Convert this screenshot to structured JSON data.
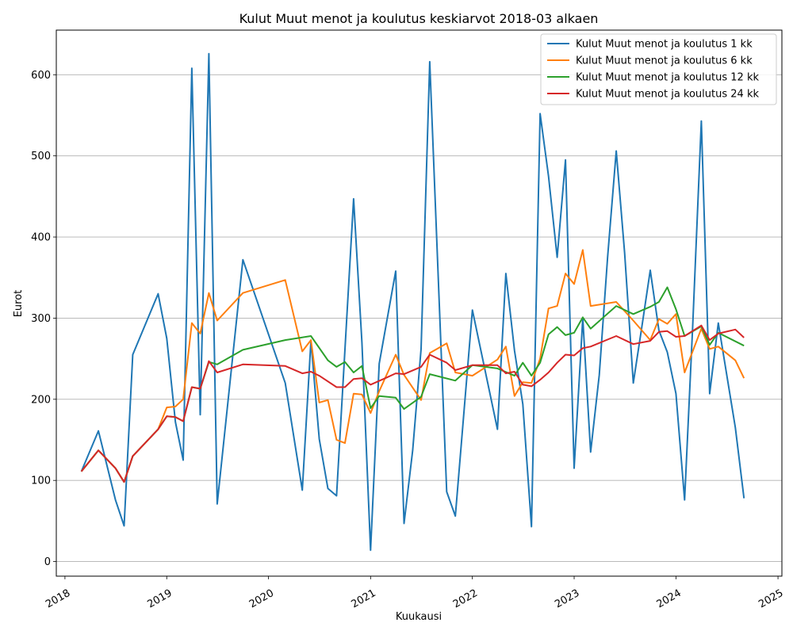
{
  "chart_data": {
    "type": "line",
    "title": "Kulut Muut menot ja koulutus keskiarvot 2018-03 alkaen",
    "xlabel": "Kuukausi",
    "ylabel": "Eurot",
    "xlim": [
      "2017-12-01",
      "2025-01-15"
    ],
    "ylim": [
      -18,
      655
    ],
    "x_ticks": [
      "2018",
      "2019",
      "2020",
      "2021",
      "2022",
      "2023",
      "2024",
      "2025"
    ],
    "y_ticks": [
      0,
      100,
      200,
      300,
      400,
      500,
      600
    ],
    "grid": "horizontal",
    "legend_position": "top-right",
    "colors": [
      "#1f77b4",
      "#ff7f0e",
      "#2ca02c",
      "#d62728"
    ],
    "series": [
      {
        "name": "Kulut Muut menot ja koulutus 1 kk",
        "points": [
          [
            "2018-03-01",
            111
          ],
          [
            "2018-05-01",
            161
          ],
          [
            "2018-07-01",
            76
          ],
          [
            "2018-08-01",
            44
          ],
          [
            "2018-09-01",
            255
          ],
          [
            "2018-12-01",
            330
          ],
          [
            "2019-01-01",
            275
          ],
          [
            "2019-02-01",
            172
          ],
          [
            "2019-03-01",
            125
          ],
          [
            "2019-04-01",
            608
          ],
          [
            "2019-05-01",
            181
          ],
          [
            "2019-06-01",
            626
          ],
          [
            "2019-07-01",
            71
          ],
          [
            "2019-10-01",
            372
          ],
          [
            "2020-03-01",
            220
          ],
          [
            "2020-05-01",
            88
          ],
          [
            "2020-06-01",
            272
          ],
          [
            "2020-07-01",
            151
          ],
          [
            "2020-08-01",
            90
          ],
          [
            "2020-09-01",
            81
          ],
          [
            "2020-11-01",
            447
          ],
          [
            "2020-12-01",
            270
          ],
          [
            "2021-01-01",
            14
          ],
          [
            "2021-02-01",
            244
          ],
          [
            "2021-04-01",
            358
          ],
          [
            "2021-05-01",
            47
          ],
          [
            "2021-06-01",
            137
          ],
          [
            "2021-07-01",
            262
          ],
          [
            "2021-08-01",
            616
          ],
          [
            "2021-10-01",
            86
          ],
          [
            "2021-11-01",
            56
          ],
          [
            "2022-01-01",
            310
          ],
          [
            "2022-04-01",
            163
          ],
          [
            "2022-05-01",
            355
          ],
          [
            "2022-06-01",
            260
          ],
          [
            "2022-07-01",
            194
          ],
          [
            "2022-08-01",
            43
          ],
          [
            "2022-09-01",
            552
          ],
          [
            "2022-10-01",
            475
          ],
          [
            "2022-11-01",
            375
          ],
          [
            "2022-12-01",
            495
          ],
          [
            "2023-01-01",
            115
          ],
          [
            "2023-02-01",
            300
          ],
          [
            "2023-03-01",
            135
          ],
          [
            "2023-04-01",
            230
          ],
          [
            "2023-05-01",
            375
          ],
          [
            "2023-06-01",
            506
          ],
          [
            "2023-07-01",
            380
          ],
          [
            "2023-08-01",
            220
          ],
          [
            "2023-09-01",
            290
          ],
          [
            "2023-10-01",
            359
          ],
          [
            "2023-11-01",
            285
          ],
          [
            "2023-12-01",
            258
          ],
          [
            "2024-01-01",
            207
          ],
          [
            "2024-02-01",
            76
          ],
          [
            "2024-03-01",
            290
          ],
          [
            "2024-04-01",
            543
          ],
          [
            "2024-05-01",
            207
          ],
          [
            "2024-06-01",
            294
          ],
          [
            "2024-08-01",
            165
          ],
          [
            "2024-09-01",
            78
          ]
        ]
      },
      {
        "name": "Kulut Muut menot ja koulutus 6 kk",
        "points": [
          [
            "2018-03-01",
            111
          ],
          [
            "2018-05-01",
            137
          ],
          [
            "2018-07-01",
            115
          ],
          [
            "2018-08-01",
            98
          ],
          [
            "2018-09-01",
            130
          ],
          [
            "2018-12-01",
            163
          ],
          [
            "2019-01-01",
            190
          ],
          [
            "2019-02-01",
            191
          ],
          [
            "2019-03-01",
            200
          ],
          [
            "2019-04-01",
            294
          ],
          [
            "2019-05-01",
            281
          ],
          [
            "2019-06-01",
            331
          ],
          [
            "2019-07-01",
            297
          ],
          [
            "2019-10-01",
            331
          ],
          [
            "2020-03-01",
            347
          ],
          [
            "2020-05-01",
            259
          ],
          [
            "2020-06-01",
            273
          ],
          [
            "2020-07-01",
            196
          ],
          [
            "2020-08-01",
            199
          ],
          [
            "2020-09-01",
            150
          ],
          [
            "2020-10-01",
            146
          ],
          [
            "2020-11-01",
            207
          ],
          [
            "2020-12-01",
            206
          ],
          [
            "2021-01-01",
            183
          ],
          [
            "2021-02-01",
            210
          ],
          [
            "2021-04-01",
            255
          ],
          [
            "2021-05-01",
            230
          ],
          [
            "2021-07-01",
            199
          ],
          [
            "2021-08-01",
            257
          ],
          [
            "2021-10-01",
            269
          ],
          [
            "2021-11-01",
            233
          ],
          [
            "2022-01-01",
            229
          ],
          [
            "2022-04-01",
            249
          ],
          [
            "2022-05-01",
            265
          ],
          [
            "2022-06-01",
            204
          ],
          [
            "2022-07-01",
            221
          ],
          [
            "2022-08-01",
            220
          ],
          [
            "2022-09-01",
            250
          ],
          [
            "2022-10-01",
            312
          ],
          [
            "2022-11-01",
            315
          ],
          [
            "2022-12-01",
            355
          ],
          [
            "2023-01-01",
            342
          ],
          [
            "2023-02-01",
            384
          ],
          [
            "2023-03-01",
            315
          ],
          [
            "2023-06-01",
            320
          ],
          [
            "2023-08-01",
            297
          ],
          [
            "2023-10-01",
            273
          ],
          [
            "2023-11-01",
            299
          ],
          [
            "2023-12-01",
            293
          ],
          [
            "2024-01-01",
            305
          ],
          [
            "2024-02-01",
            233
          ],
          [
            "2024-04-01",
            287
          ],
          [
            "2024-05-01",
            262
          ],
          [
            "2024-06-01",
            265
          ],
          [
            "2024-08-01",
            248
          ],
          [
            "2024-09-01",
            226
          ]
        ]
      },
      {
        "name": "Kulut Muut menot ja koulutus 12 kk",
        "points": [
          [
            "2018-03-01",
            111
          ],
          [
            "2018-05-01",
            137
          ],
          [
            "2018-07-01",
            115
          ],
          [
            "2018-08-01",
            98
          ],
          [
            "2018-09-01",
            130
          ],
          [
            "2018-12-01",
            163
          ],
          [
            "2019-01-01",
            179
          ],
          [
            "2019-02-01",
            178
          ],
          [
            "2019-03-01",
            173
          ],
          [
            "2019-04-01",
            215
          ],
          [
            "2019-05-01",
            213
          ],
          [
            "2019-06-01",
            246
          ],
          [
            "2019-07-01",
            243
          ],
          [
            "2019-10-01",
            261
          ],
          [
            "2020-03-01",
            273
          ],
          [
            "2020-06-01",
            278
          ],
          [
            "2020-08-01",
            248
          ],
          [
            "2020-09-01",
            240
          ],
          [
            "2020-10-01",
            246
          ],
          [
            "2020-11-01",
            233
          ],
          [
            "2020-12-01",
            241
          ],
          [
            "2021-01-01",
            189
          ],
          [
            "2021-02-01",
            204
          ],
          [
            "2021-04-01",
            202
          ],
          [
            "2021-05-01",
            188
          ],
          [
            "2021-07-01",
            203
          ],
          [
            "2021-08-01",
            231
          ],
          [
            "2021-11-01",
            223
          ],
          [
            "2022-01-01",
            242
          ],
          [
            "2022-04-01",
            238
          ],
          [
            "2022-06-01",
            229
          ],
          [
            "2022-07-01",
            245
          ],
          [
            "2022-08-01",
            229
          ],
          [
            "2022-09-01",
            245
          ],
          [
            "2022-10-01",
            280
          ],
          [
            "2022-11-01",
            289
          ],
          [
            "2022-12-01",
            279
          ],
          [
            "2023-01-01",
            282
          ],
          [
            "2023-02-01",
            301
          ],
          [
            "2023-03-01",
            287
          ],
          [
            "2023-06-01",
            315
          ],
          [
            "2023-08-01",
            305
          ],
          [
            "2023-10-01",
            314
          ],
          [
            "2023-11-01",
            320
          ],
          [
            "2023-12-01",
            338
          ],
          [
            "2024-01-01",
            311
          ],
          [
            "2024-02-01",
            278
          ],
          [
            "2024-04-01",
            290
          ],
          [
            "2024-05-01",
            267
          ],
          [
            "2024-06-01",
            282
          ],
          [
            "2024-09-01",
            266
          ]
        ]
      },
      {
        "name": "Kulut Muut menot ja koulutus 24 kk",
        "points": [
          [
            "2018-03-01",
            111
          ],
          [
            "2018-05-01",
            137
          ],
          [
            "2018-07-01",
            115
          ],
          [
            "2018-08-01",
            98
          ],
          [
            "2018-09-01",
            130
          ],
          [
            "2018-12-01",
            163
          ],
          [
            "2019-01-01",
            179
          ],
          [
            "2019-02-01",
            178
          ],
          [
            "2019-03-01",
            173
          ],
          [
            "2019-04-01",
            215
          ],
          [
            "2019-05-01",
            213
          ],
          [
            "2019-06-01",
            247
          ],
          [
            "2019-07-01",
            233
          ],
          [
            "2019-10-01",
            243
          ],
          [
            "2020-03-01",
            241
          ],
          [
            "2020-05-01",
            232
          ],
          [
            "2020-06-01",
            234
          ],
          [
            "2020-07-01",
            229
          ],
          [
            "2020-09-01",
            215
          ],
          [
            "2020-10-01",
            215
          ],
          [
            "2020-11-01",
            225
          ],
          [
            "2020-12-01",
            226
          ],
          [
            "2021-01-01",
            218
          ],
          [
            "2021-03-01",
            227
          ],
          [
            "2021-04-01",
            232
          ],
          [
            "2021-05-01",
            231
          ],
          [
            "2021-07-01",
            240
          ],
          [
            "2021-08-01",
            255
          ],
          [
            "2021-10-01",
            245
          ],
          [
            "2021-11-01",
            236
          ],
          [
            "2022-01-01",
            242
          ],
          [
            "2022-04-01",
            242
          ],
          [
            "2022-05-01",
            232
          ],
          [
            "2022-06-01",
            234
          ],
          [
            "2022-07-01",
            218
          ],
          [
            "2022-08-01",
            216
          ],
          [
            "2022-09-01",
            224
          ],
          [
            "2022-10-01",
            233
          ],
          [
            "2022-11-01",
            245
          ],
          [
            "2022-12-01",
            255
          ],
          [
            "2023-01-01",
            254
          ],
          [
            "2023-02-01",
            263
          ],
          [
            "2023-03-01",
            265
          ],
          [
            "2023-06-01",
            278
          ],
          [
            "2023-08-01",
            268
          ],
          [
            "2023-10-01",
            272
          ],
          [
            "2023-11-01",
            283
          ],
          [
            "2023-12-01",
            284
          ],
          [
            "2024-01-01",
            277
          ],
          [
            "2024-02-01",
            278
          ],
          [
            "2024-04-01",
            291
          ],
          [
            "2024-05-01",
            273
          ],
          [
            "2024-06-01",
            281
          ],
          [
            "2024-08-01",
            286
          ],
          [
            "2024-09-01",
            276
          ]
        ]
      }
    ]
  }
}
